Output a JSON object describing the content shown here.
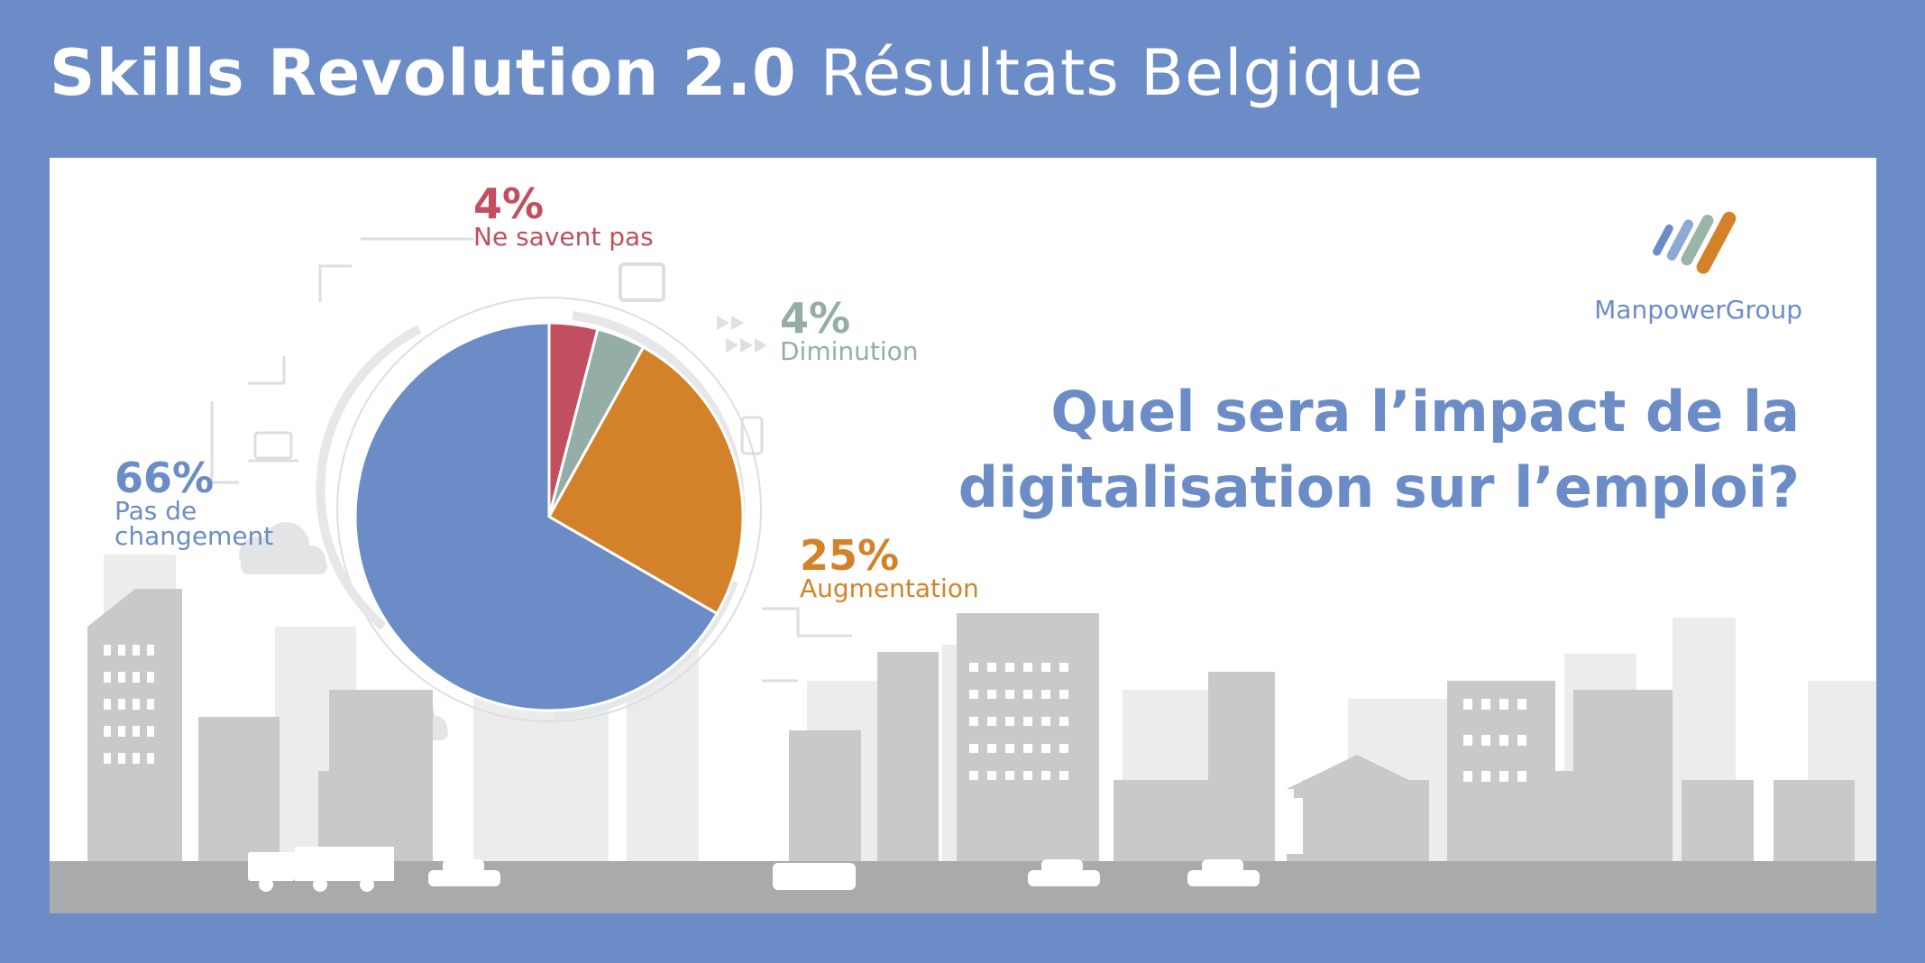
{
  "header": {
    "title_bold": "Skills Revolution 2.0",
    "title_light": "Résultats Belgique"
  },
  "brand": {
    "name": "ManpowerGroup",
    "logo_colors": [
      "#6b8cc6",
      "#8fa9d6",
      "#9ab5a8",
      "#d4822a"
    ]
  },
  "question": {
    "line1": "Quel sera l’impact de la",
    "line2": "digitalisation sur l’emploi?"
  },
  "colors": {
    "background": "#6b8cc6",
    "panel": "#ffffff",
    "skyline": "#c8c9cb",
    "skyline_light": "#ececed",
    "ground": "#a9aaac"
  },
  "chart_data": {
    "type": "pie",
    "slices": [
      {
        "label": "Ne savent pas",
        "value": 4,
        "display": "4%",
        "color": "#c24f5f"
      },
      {
        "label": "Diminution",
        "value": 4,
        "display": "4%",
        "color": "#94ada6"
      },
      {
        "label": "Augmentation",
        "value": 25,
        "display": "25%",
        "color": "#d4822a"
      },
      {
        "label": "Pas de changement",
        "value": 66,
        "display": "66%",
        "caption_line1": "Pas de",
        "caption_line2": "changement",
        "color": "#6b8cc6"
      }
    ],
    "start": "12 o'clock",
    "direction": "clockwise"
  }
}
